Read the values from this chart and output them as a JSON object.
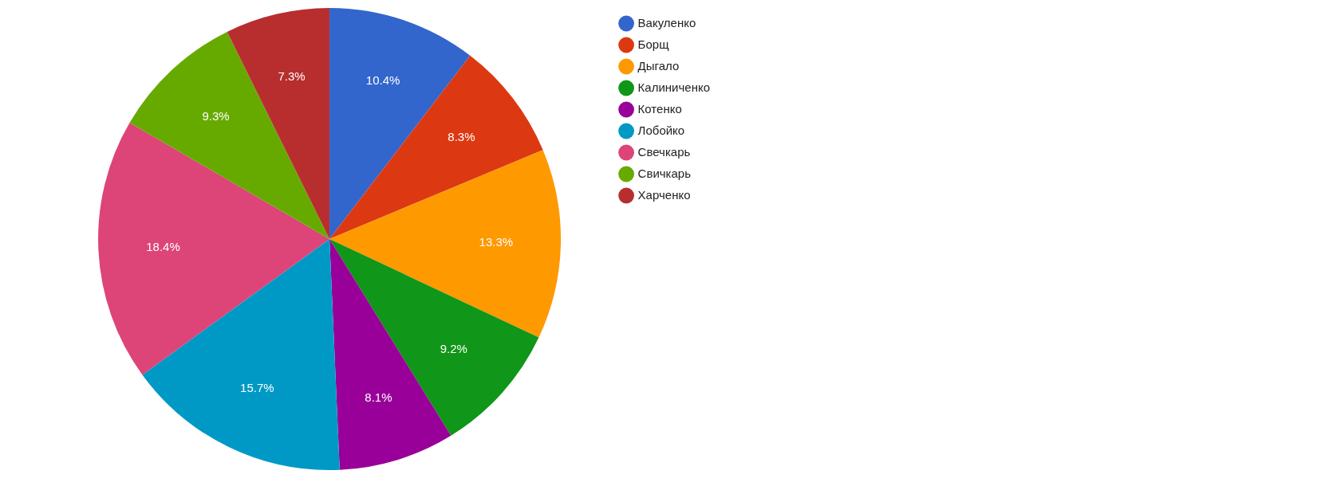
{
  "chart_data": {
    "type": "pie",
    "categories": [
      "Вакуленко",
      "Борщ",
      "Дыгало",
      "Калиниченко",
      "Котенко",
      "Лобойко",
      "Свечкарь",
      "Свичкарь",
      "Харченко"
    ],
    "values": [
      10.4,
      8.3,
      13.3,
      9.2,
      8.1,
      15.7,
      18.4,
      9.3,
      7.3
    ],
    "colors": [
      "#3366cc",
      "#dc3912",
      "#ff9900",
      "#109618",
      "#990099",
      "#0099c6",
      "#dd4477",
      "#66aa00",
      "#b82e2e"
    ],
    "value_labels": [
      "10.4%",
      "8.3%",
      "13.3%",
      "9.2%",
      "8.1%",
      "15.7%",
      "18.4%",
      "9.3%",
      "7.3%"
    ],
    "legend": "right"
  }
}
